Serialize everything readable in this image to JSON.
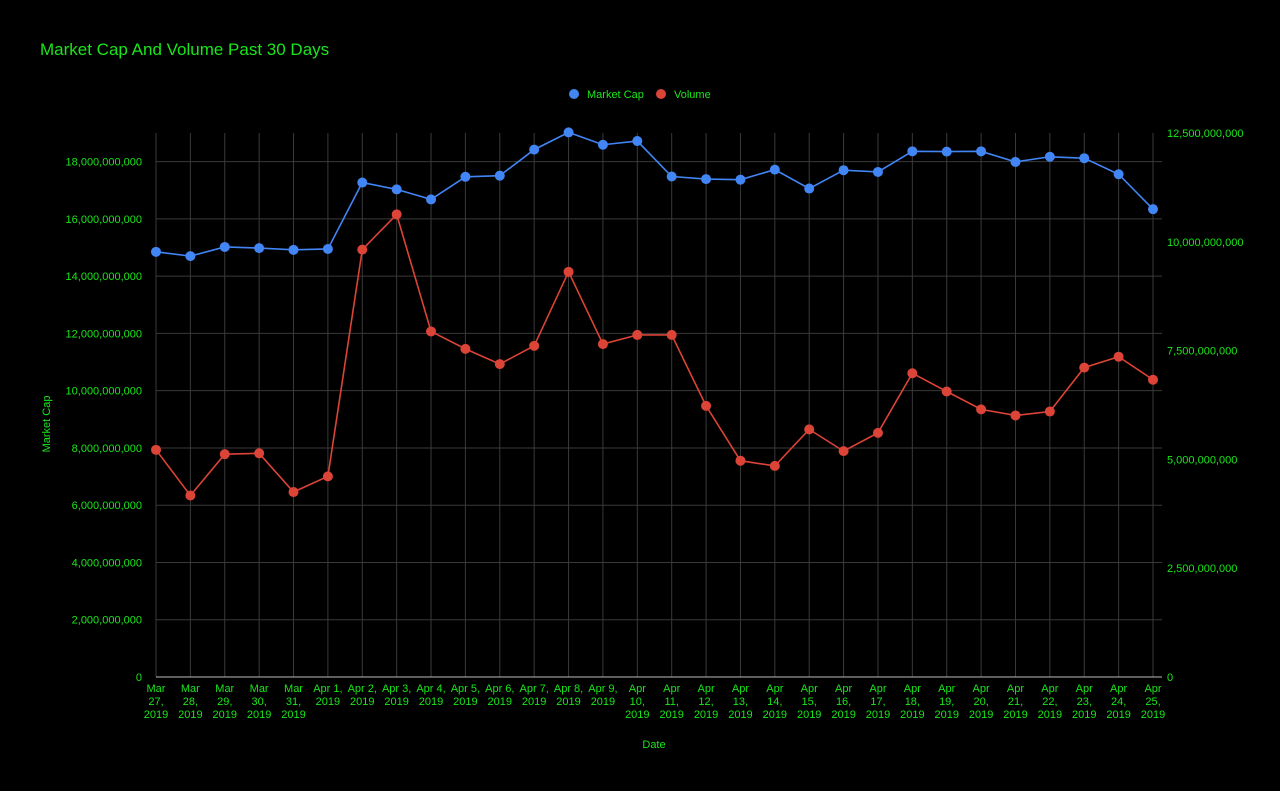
{
  "colors": {
    "background": "#000000",
    "text": "#19e619",
    "grid": "#3a3a3a",
    "axis": "#bdbdbd",
    "market_cap": "#4285f4",
    "volume": "#db4437"
  },
  "chart_data": {
    "type": "line",
    "title": "Market Cap And Volume Past 30 Days",
    "xlabel": "Date",
    "ylabel": "Market Cap",
    "y2label": "",
    "ylim": [
      0,
      19000000000
    ],
    "y2lim": [
      0,
      12500000000
    ],
    "y_ticks": [
      "0",
      "2,000,000,000",
      "4,000,000,000",
      "6,000,000,000",
      "8,000,000,000",
      "10,000,000,000",
      "12,000,000,000",
      "14,000,000,000",
      "16,000,000,000",
      "18,000,000,000"
    ],
    "y2_ticks": [
      "0",
      "2,500,000,000",
      "5,000,000,000",
      "7,500,000,000",
      "10,000,000,000",
      "12,500,000,000"
    ],
    "legend_position": "top-center",
    "grid": true,
    "categories": [
      [
        "Mar",
        "27,",
        "2019"
      ],
      [
        "Mar",
        "28,",
        "2019"
      ],
      [
        "Mar",
        "29,",
        "2019"
      ],
      [
        "Mar",
        "30,",
        "2019"
      ],
      [
        "Mar",
        "31,",
        "2019"
      ],
      [
        "Apr 1,",
        "2019"
      ],
      [
        "Apr 2,",
        "2019"
      ],
      [
        "Apr 3,",
        "2019"
      ],
      [
        "Apr 4,",
        "2019"
      ],
      [
        "Apr 5,",
        "2019"
      ],
      [
        "Apr 6,",
        "2019"
      ],
      [
        "Apr 7,",
        "2019"
      ],
      [
        "Apr 8,",
        "2019"
      ],
      [
        "Apr 9,",
        "2019"
      ],
      [
        "Apr",
        "10,",
        "2019"
      ],
      [
        "Apr",
        "11,",
        "2019"
      ],
      [
        "Apr",
        "12,",
        "2019"
      ],
      [
        "Apr",
        "13,",
        "2019"
      ],
      [
        "Apr",
        "14,",
        "2019"
      ],
      [
        "Apr",
        "15,",
        "2019"
      ],
      [
        "Apr",
        "16,",
        "2019"
      ],
      [
        "Apr",
        "17,",
        "2019"
      ],
      [
        "Apr",
        "18,",
        "2019"
      ],
      [
        "Apr",
        "19,",
        "2019"
      ],
      [
        "Apr",
        "20,",
        "2019"
      ],
      [
        "Apr",
        "21,",
        "2019"
      ],
      [
        "Apr",
        "22,",
        "2019"
      ],
      [
        "Apr",
        "23,",
        "2019"
      ],
      [
        "Apr",
        "24,",
        "2019"
      ],
      [
        "Apr",
        "25,",
        "2019"
      ]
    ],
    "series": [
      {
        "name": "Market Cap",
        "axis": "left",
        "color": "#4285f4",
        "values": [
          14850000000,
          14700000000,
          15020000000,
          14980000000,
          14920000000,
          14950000000,
          17270000000,
          17030000000,
          16680000000,
          17470000000,
          17510000000,
          18420000000,
          19020000000,
          18590000000,
          18720000000,
          17480000000,
          17390000000,
          17370000000,
          17720000000,
          17060000000,
          17700000000,
          17640000000,
          18360000000,
          18350000000,
          18360000000,
          17990000000,
          18170000000,
          18120000000,
          17560000000,
          16340000000
        ]
      },
      {
        "name": "Volume",
        "axis": "right",
        "color": "#db4437",
        "values": [
          5220000000,
          4170000000,
          5120000000,
          5140000000,
          4250000000,
          4610000000,
          9820000000,
          10630000000,
          7940000000,
          7540000000,
          7190000000,
          7610000000,
          9310000000,
          7650000000,
          7860000000,
          7860000000,
          6230000000,
          4970000000,
          4850000000,
          5690000000,
          5190000000,
          5610000000,
          6980000000,
          6560000000,
          6150000000,
          6010000000,
          6100000000,
          7110000000,
          7360000000,
          6830000000
        ]
      }
    ]
  }
}
